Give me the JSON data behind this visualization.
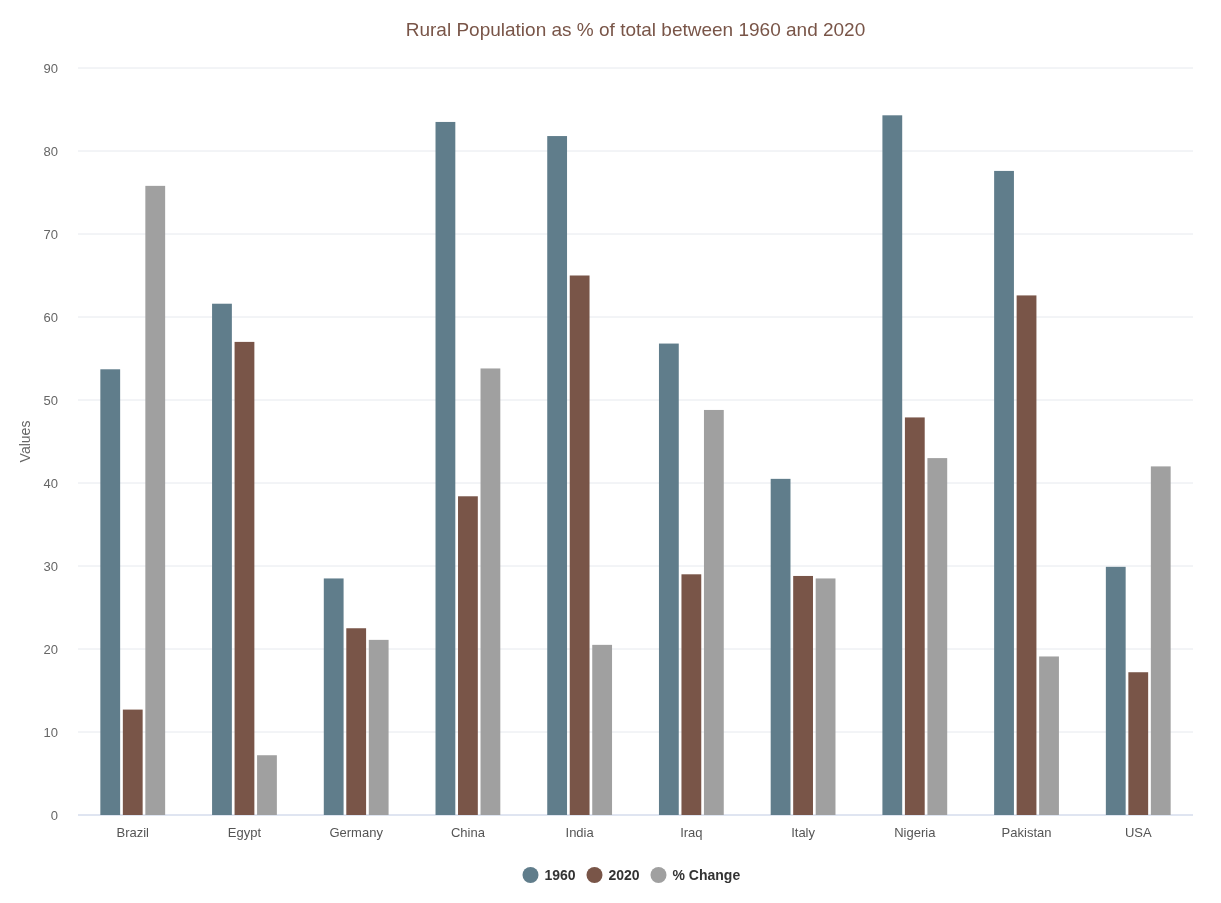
{
  "chart_data": {
    "type": "bar",
    "title": "Rural Population as % of total between 1960 and 2020",
    "ylabel": "Values",
    "categories": [
      "Brazil",
      "Egypt",
      "Germany",
      "China",
      "India",
      "Iraq",
      "Italy",
      "Nigeria",
      "Pakistan",
      "USA"
    ],
    "series": [
      {
        "name": "1960",
        "color": "#607d8b",
        "values": [
          53.7,
          61.6,
          28.5,
          83.5,
          81.8,
          56.8,
          40.5,
          84.3,
          77.6,
          29.9
        ]
      },
      {
        "name": "2020",
        "color": "#795548",
        "values": [
          12.7,
          57.0,
          22.5,
          38.4,
          65.0,
          29.0,
          28.8,
          47.9,
          62.6,
          17.2
        ]
      },
      {
        "name": "% Change",
        "color": "#a0a0a0",
        "values": [
          75.8,
          7.2,
          21.1,
          53.8,
          20.5,
          48.8,
          28.5,
          43.0,
          19.1,
          42.0
        ]
      }
    ],
    "ylim": [
      0,
      90
    ],
    "yticks": [
      0,
      10,
      20,
      30,
      40,
      50,
      60,
      70,
      80,
      90
    ],
    "grid": "y",
    "legend": "bottom"
  }
}
